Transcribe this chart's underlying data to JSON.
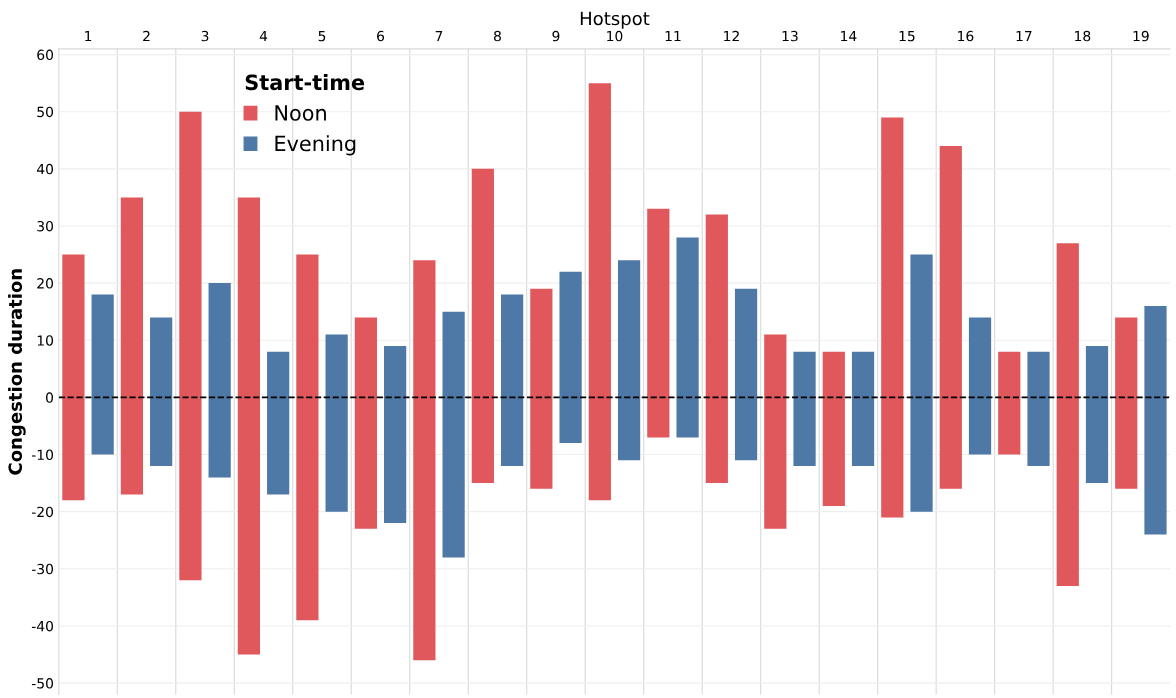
{
  "chart_data": {
    "type": "bar",
    "xlabel": "Hotspot",
    "ylabel": "Congestion duration",
    "legend_title": "Start-time",
    "legend": "top left",
    "grid": "y",
    "categories": [
      "1",
      "2",
      "3",
      "4",
      "5",
      "6",
      "7",
      "8",
      "9",
      "10",
      "11",
      "12",
      "13",
      "14",
      "15",
      "16",
      "17",
      "18",
      "19"
    ],
    "series": [
      {
        "name": "Noon",
        "color": "#e0585b",
        "base": [
          -18,
          -17,
          -32,
          -45,
          -39,
          -23,
          -46,
          -15,
          -16,
          -18,
          -7,
          -15,
          -23,
          -19,
          -21,
          -16,
          -10,
          -33,
          -16
        ],
        "values": [
          43,
          52,
          82,
          80,
          64,
          37,
          70,
          55,
          35,
          73,
          40,
          47,
          34,
          27,
          70,
          60,
          18,
          60,
          30
        ]
      },
      {
        "name": "Evening",
        "color": "#4e79a7",
        "base": [
          -10,
          -12,
          -14,
          -17,
          -20,
          -22,
          -28,
          -12,
          -8,
          -11,
          -7,
          -11,
          -12,
          -12,
          -20,
          -10,
          -12,
          -15,
          -24
        ],
        "values": [
          28,
          26,
          34,
          25,
          31,
          31,
          43,
          30,
          30,
          35,
          35,
          30,
          20,
          20,
          45,
          24,
          20,
          24,
          40
        ]
      }
    ],
    "ylim": [
      -52,
      61
    ],
    "yticks": [
      -50,
      -40,
      -30,
      -20,
      -10,
      0,
      10,
      20,
      30,
      40,
      50,
      60
    ],
    "ref_lines": [
      {
        "axis": "y",
        "value": 0,
        "color": "#000000",
        "line_style": "dashed"
      }
    ]
  }
}
